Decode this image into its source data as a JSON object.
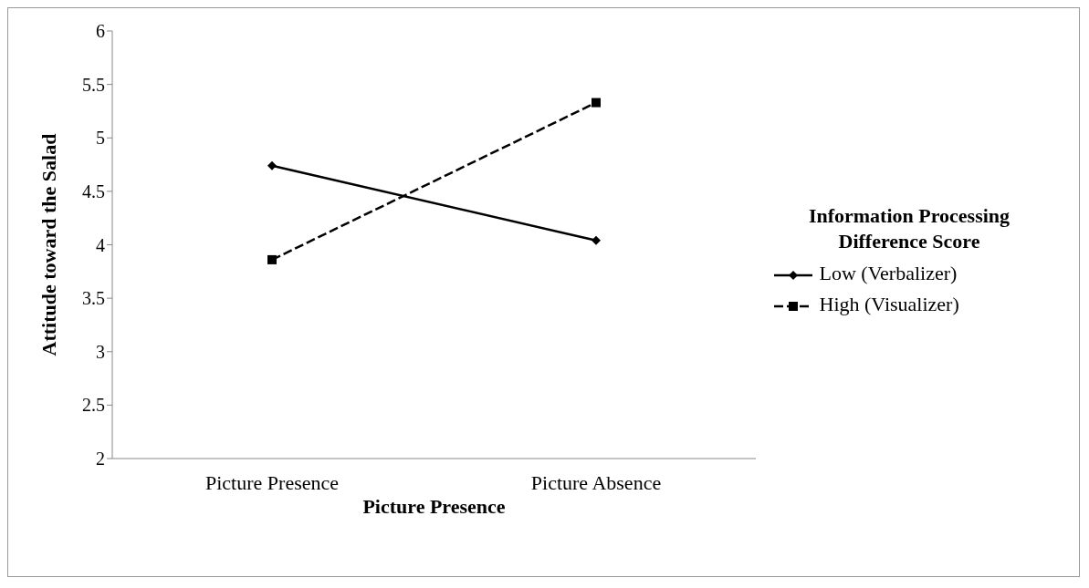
{
  "chart_data": {
    "type": "line",
    "xlabel": "Picture Presence",
    "ylabel": "Attitude toward the Salad",
    "legend_title": "Information Processing Difference Score",
    "categories": [
      "Picture Presence",
      "Picture Absence"
    ],
    "series": [
      {
        "name": "Low (Verbalizer)",
        "color": "#000000",
        "values": [
          4.74,
          4.04
        ],
        "marker": "diamond",
        "line_style": "solid"
      },
      {
        "name": "High (Visualizer)",
        "color": "#000000",
        "values": [
          3.86,
          5.33
        ],
        "marker": "square",
        "line_style": "dashed"
      }
    ],
    "ylim": [
      2,
      6
    ],
    "yticks": [
      2,
      2.5,
      3,
      3.5,
      4,
      4.5,
      5,
      5.5,
      6
    ],
    "grid": false,
    "legend": "right"
  }
}
